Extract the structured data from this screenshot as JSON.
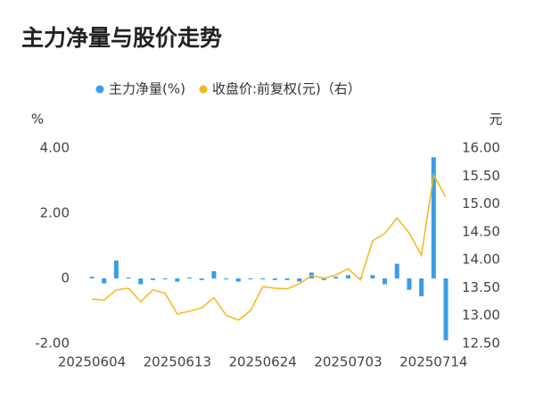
{
  "chart_data": {
    "type": "bar_line",
    "title": "主力净量与股价走势",
    "y_label": "%",
    "y2_label": "元",
    "categories": [
      "20250604",
      null,
      null,
      null,
      null,
      null,
      null,
      "20250613",
      null,
      null,
      null,
      null,
      null,
      null,
      "20250624",
      null,
      null,
      null,
      null,
      null,
      null,
      "20250703",
      null,
      null,
      null,
      null,
      null,
      null,
      "20250714",
      null
    ],
    "series": [
      {
        "name": "主力净量(%)",
        "type": "bar",
        "color": "#3a9ee6",
        "values": [
          0.05,
          -0.15,
          0.55,
          0.03,
          -0.18,
          -0.05,
          -0.03,
          -0.1,
          0.03,
          -0.05,
          0.22,
          -0.03,
          -0.1,
          -0.03,
          -0.03,
          -0.05,
          -0.05,
          -0.1,
          0.18,
          -0.05,
          0.05,
          0.1,
          0.02,
          0.1,
          -0.18,
          0.45,
          -0.35,
          -0.55,
          3.72,
          -1.9
        ]
      },
      {
        "name": "收盘价:前复权(元)（右）",
        "type": "line",
        "axis": "y2",
        "color": "#f5b71c",
        "values": [
          13.3,
          13.28,
          13.46,
          13.49,
          13.25,
          13.46,
          13.4,
          13.03,
          13.08,
          13.14,
          13.32,
          13.01,
          12.92,
          13.09,
          13.52,
          13.49,
          13.48,
          13.57,
          13.72,
          13.67,
          13.73,
          13.84,
          13.64,
          14.34,
          14.47,
          14.75,
          14.48,
          14.08,
          15.52,
          15.12
        ]
      }
    ],
    "ylim": [
      -2,
      4
    ],
    "yticks": [
      {
        "value": -2,
        "label": "-2.00"
      },
      0,
      {
        "value": 2,
        "label": "2.00"
      },
      {
        "value": 4,
        "label": "4.00"
      }
    ],
    "y2lim": [
      12.5,
      16
    ],
    "y2ticks": [
      {
        "value": 12.5,
        "label": "12.50"
      },
      {
        "value": 13,
        "label": "13.00"
      },
      {
        "value": 13.5,
        "label": "13.50"
      },
      {
        "value": 14,
        "label": "14.00"
      },
      {
        "value": 14.5,
        "label": "14.50"
      },
      {
        "value": 15,
        "label": "15.00"
      },
      {
        "value": 15.5,
        "label": "15.50"
      },
      {
        "value": 16,
        "label": "16.00"
      }
    ],
    "grid": false
  }
}
